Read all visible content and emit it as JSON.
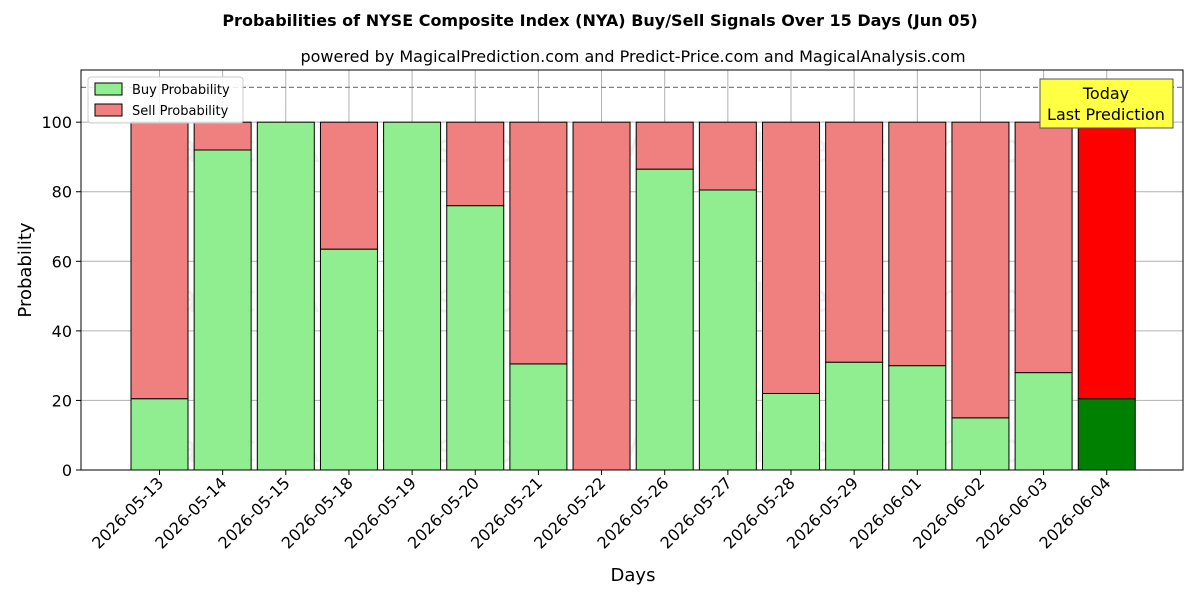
{
  "chart_data": {
    "type": "bar",
    "stacked": true,
    "title": "Probabilities of NYSE Composite Index (NYA) Buy/Sell Signals Over 15 Days (Jun 05)",
    "subtitle": "powered by MagicalPrediction.com and Predict-Price.com and MagicalAnalysis.com",
    "xlabel": "Days",
    "ylabel": "Probability",
    "ylim": [
      0,
      115
    ],
    "yticks": [
      0,
      20,
      40,
      60,
      80,
      100
    ],
    "grid": true,
    "legend_position": "top-left",
    "reference_line": 110,
    "categories": [
      "2026-05-13",
      "2026-05-14",
      "2026-05-15",
      "2026-05-18",
      "2026-05-19",
      "2026-05-20",
      "2026-05-21",
      "2026-05-22",
      "2026-05-26",
      "2026-05-27",
      "2026-05-28",
      "2026-05-29",
      "2026-06-01",
      "2026-06-02",
      "2026-06-03",
      "2026-06-04"
    ],
    "series": [
      {
        "name": "Buy Probability",
        "color": "#90ee90",
        "values": [
          20.5,
          92,
          100,
          63.5,
          100,
          76,
          30.5,
          0,
          86.5,
          80.5,
          22,
          31,
          30,
          15,
          28,
          20.5
        ]
      },
      {
        "name": "Sell Probability",
        "color": "#f08080",
        "values": [
          79.5,
          8,
          0,
          36.5,
          0,
          24,
          69.5,
          100,
          13.5,
          19.5,
          78,
          69,
          70,
          85,
          72,
          79.5
        ]
      }
    ],
    "highlight": {
      "index": 15,
      "buy_color": "#008000",
      "sell_color": "#ff0000"
    },
    "annotation": {
      "lines": [
        "Today",
        "Last Prediction"
      ],
      "background": "#ffff44"
    },
    "watermarks": [
      "MagicalAnalysis.com",
      "MagicalPrediction.com"
    ]
  }
}
